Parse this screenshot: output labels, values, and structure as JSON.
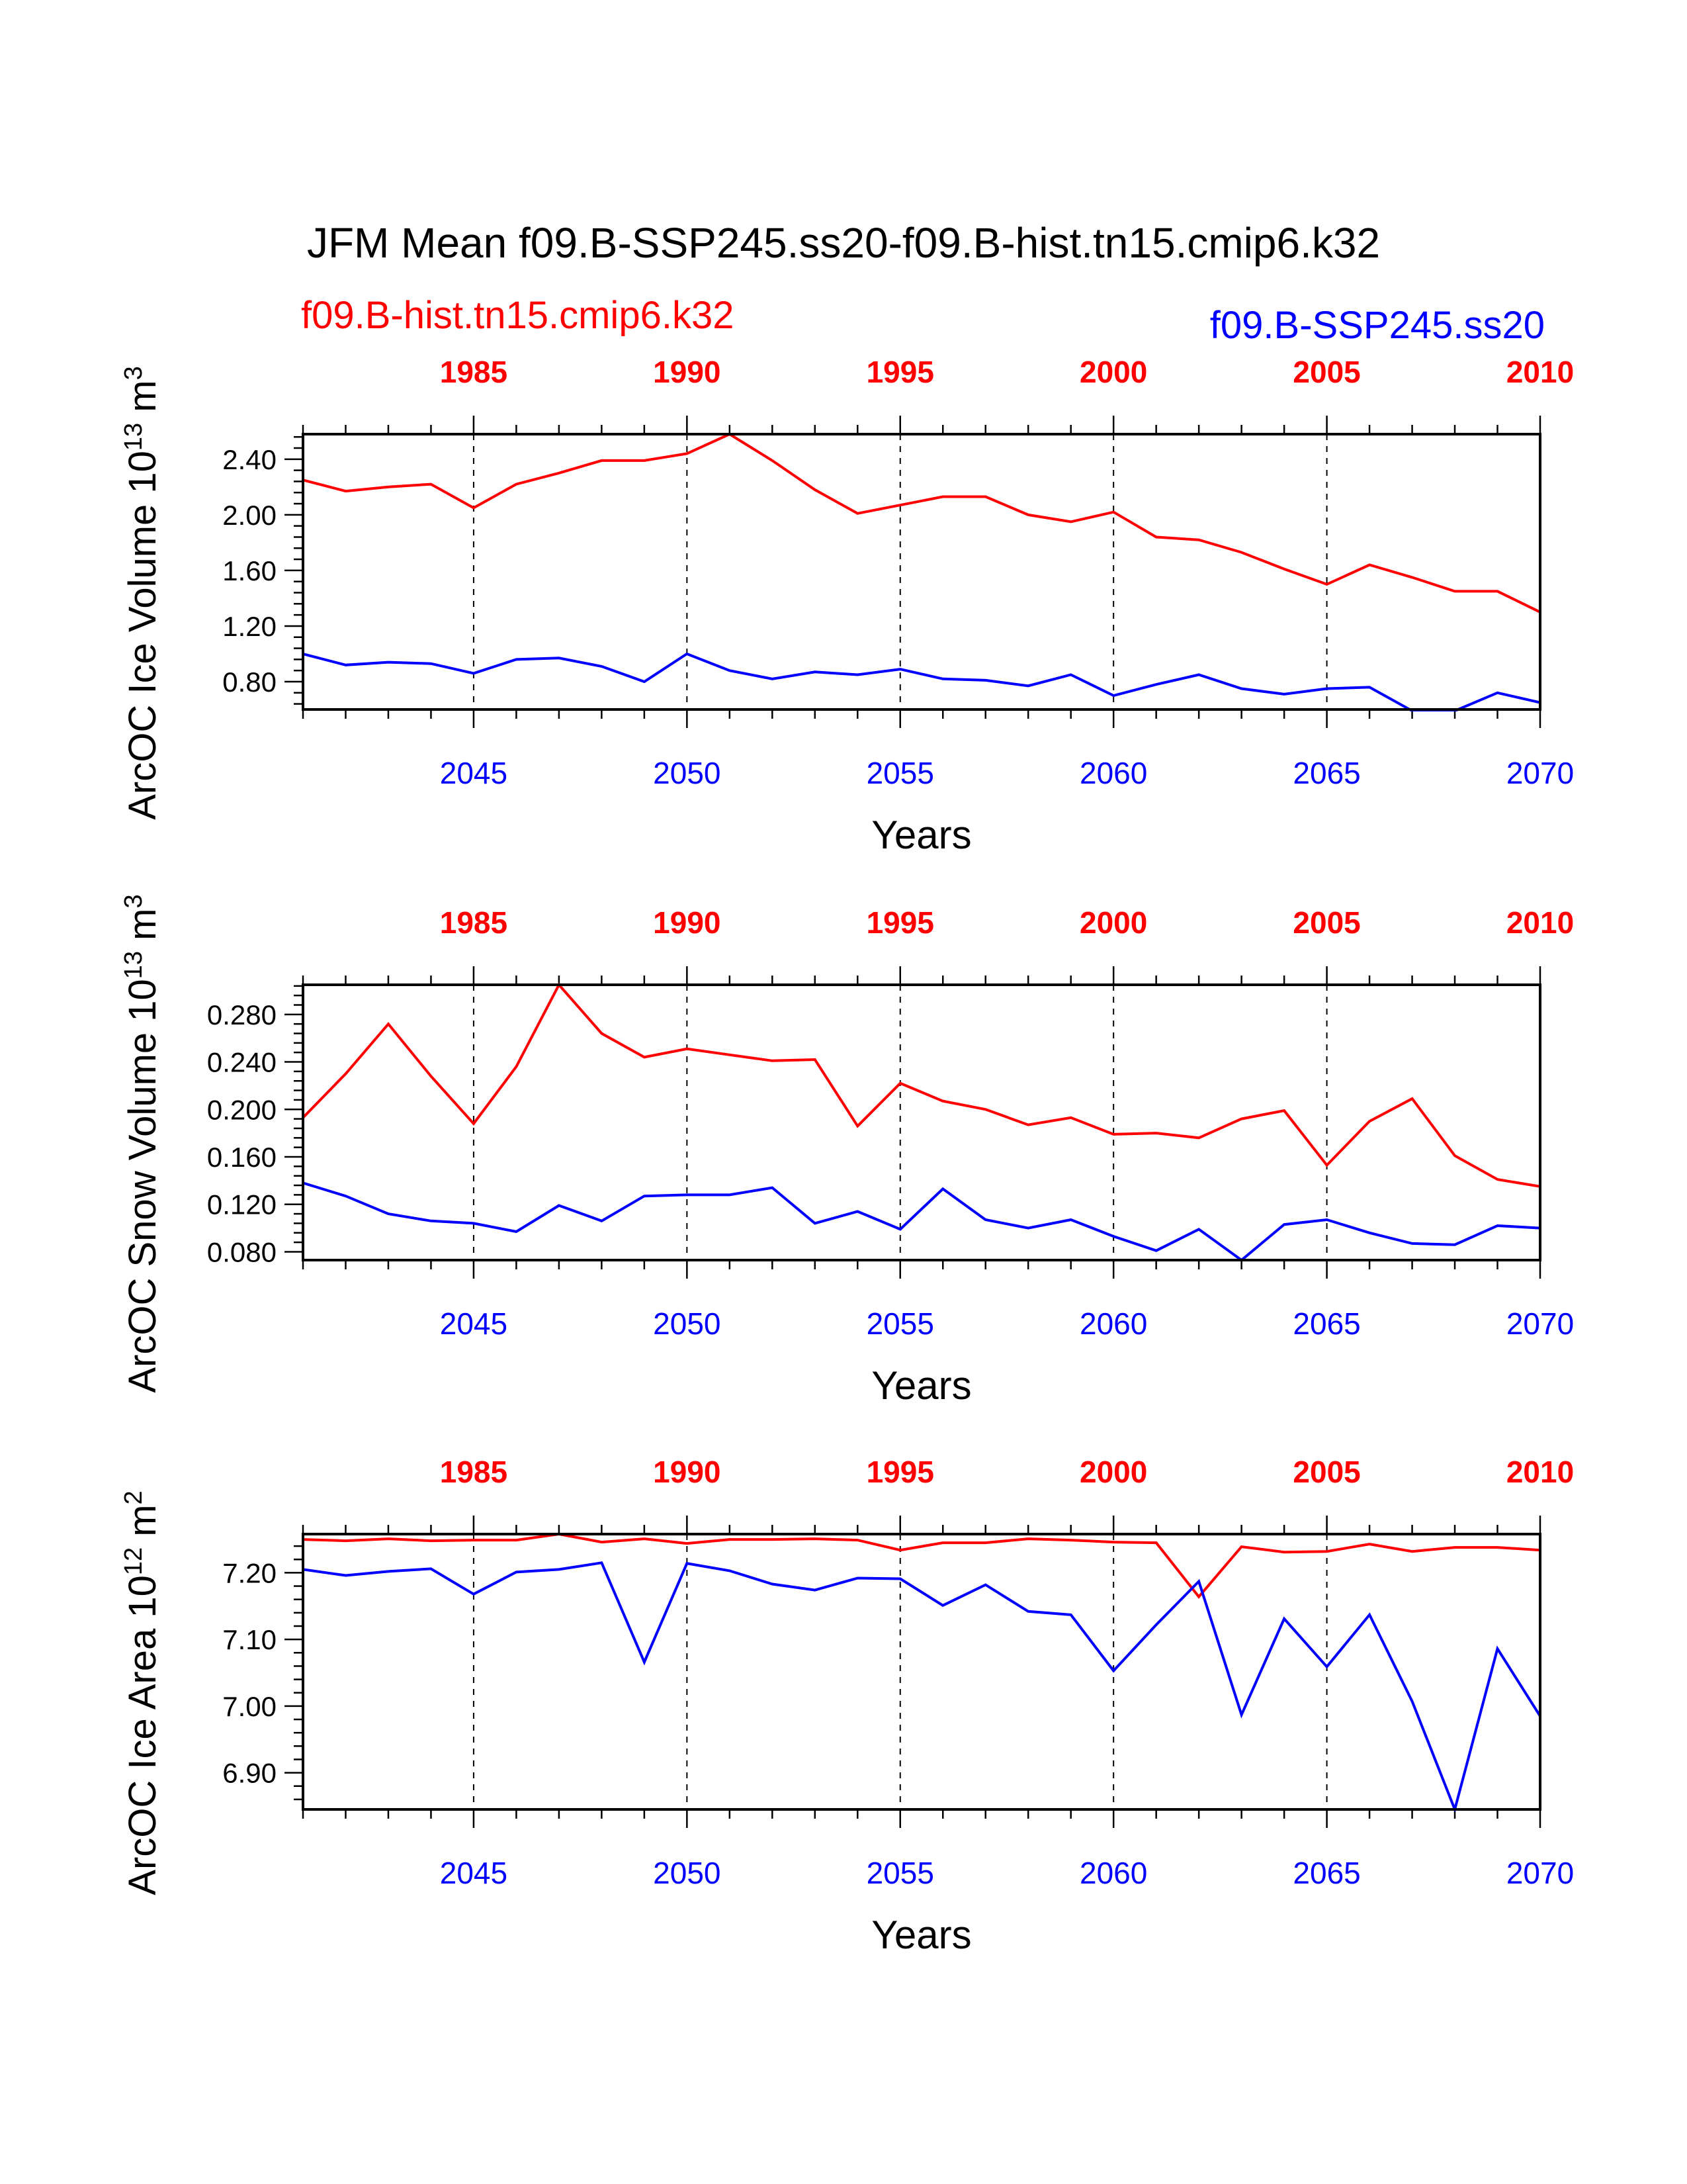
{
  "title": "JFM Mean f09.B-SSP245.ss20-f09.B-hist.tn15.cmip6.k32",
  "legend": {
    "hist_label": "f09.B-hist.tn15.cmip6.k32",
    "ssp_label": "f09.B-SSP245.ss20",
    "hist_color": "#ff0000",
    "ssp_color": "#0000ff"
  },
  "chart_data": [
    {
      "type": "line",
      "ylabel": "ArcOC Ice Volume 10^13 m^3",
      "xlabel": "Years",
      "ylim": [
        0.6,
        2.58
      ],
      "yticks": [
        0.8,
        1.2,
        1.6,
        2.0,
        2.4
      ],
      "ytick_labels": [
        "0.80",
        "1.20",
        "1.60",
        "2.00",
        "2.40"
      ],
      "xlim_bottom": [
        2041,
        2070
      ],
      "xticks_bottom": [
        "2045",
        "2050",
        "2055",
        "2060",
        "2065",
        "2070"
      ],
      "xticks_top": [
        "1985",
        "1990",
        "1995",
        "2000",
        "2005",
        "2010"
      ],
      "x": [
        2041,
        2042,
        2043,
        2044,
        2045,
        2046,
        2047,
        2048,
        2049,
        2050,
        2051,
        2052,
        2053,
        2054,
        2055,
        2056,
        2057,
        2058,
        2059,
        2060,
        2061,
        2062,
        2063,
        2064,
        2065,
        2066,
        2067,
        2068,
        2069,
        2070
      ],
      "series": [
        {
          "name": "f09.B-hist.tn15.cmip6.k32",
          "color": "#ff0000",
          "values": [
            2.25,
            2.17,
            2.2,
            2.22,
            2.05,
            2.22,
            2.3,
            2.39,
            2.39,
            2.44,
            2.58,
            2.39,
            2.18,
            2.01,
            2.07,
            2.13,
            2.13,
            2.0,
            1.95,
            2.02,
            1.84,
            1.82,
            1.73,
            1.61,
            1.5,
            1.64,
            1.55,
            1.45,
            1.45,
            1.3
          ]
        },
        {
          "name": "f09.B-SSP245.ss20",
          "color": "#0000ff",
          "values": [
            1.0,
            0.92,
            0.94,
            0.93,
            0.86,
            0.96,
            0.97,
            0.91,
            0.8,
            1.0,
            0.88,
            0.82,
            0.87,
            0.85,
            0.89,
            0.82,
            0.81,
            0.77,
            0.85,
            0.7,
            0.78,
            0.85,
            0.75,
            0.71,
            0.75,
            0.76,
            0.59,
            0.59,
            0.72,
            0.65
          ]
        }
      ]
    },
    {
      "type": "line",
      "ylabel": "ArcOC Snow Volume 10^13 m^3",
      "xlabel": "Years",
      "ylim": [
        0.073,
        0.305
      ],
      "yticks": [
        0.08,
        0.12,
        0.16,
        0.2,
        0.24,
        0.28
      ],
      "ytick_labels": [
        "0.080",
        "0.120",
        "0.160",
        "0.200",
        "0.240",
        "0.280"
      ],
      "xlim_bottom": [
        2041,
        2070
      ],
      "xticks_bottom": [
        "2045",
        "2050",
        "2055",
        "2060",
        "2065",
        "2070"
      ],
      "xticks_top": [
        "1985",
        "1990",
        "1995",
        "2000",
        "2005",
        "2010"
      ],
      "x": [
        2041,
        2042,
        2043,
        2044,
        2045,
        2046,
        2047,
        2048,
        2049,
        2050,
        2051,
        2052,
        2053,
        2054,
        2055,
        2056,
        2057,
        2058,
        2059,
        2060,
        2061,
        2062,
        2063,
        2064,
        2065,
        2066,
        2067,
        2068,
        2069,
        2070
      ],
      "series": [
        {
          "name": "f09.B-hist.tn15.cmip6.k32",
          "color": "#ff0000",
          "values": [
            0.193,
            0.23,
            0.272,
            0.228,
            0.188,
            0.236,
            0.305,
            0.264,
            0.244,
            0.251,
            0.246,
            0.241,
            0.242,
            0.186,
            0.222,
            0.207,
            0.2,
            0.187,
            0.193,
            0.179,
            0.18,
            0.176,
            0.192,
            0.199,
            0.153,
            0.19,
            0.209,
            0.161,
            0.141,
            0.135
          ]
        },
        {
          "name": "f09.B-SSP245.ss20",
          "color": "#0000ff",
          "values": [
            0.138,
            0.127,
            0.112,
            0.106,
            0.104,
            0.097,
            0.119,
            0.106,
            0.127,
            0.128,
            0.128,
            0.134,
            0.104,
            0.114,
            0.099,
            0.133,
            0.107,
            0.1,
            0.107,
            0.093,
            0.081,
            0.099,
            0.073,
            0.103,
            0.107,
            0.096,
            0.087,
            0.086,
            0.102,
            0.1
          ]
        }
      ]
    },
    {
      "type": "line",
      "ylabel": "ArcOC Ice Area 10^12 m^2",
      "xlabel": "Years",
      "ylim": [
        6.845,
        7.258
      ],
      "yticks": [
        6.9,
        7.0,
        7.1,
        7.2
      ],
      "ytick_labels": [
        "6.90",
        "7.00",
        "7.10",
        "7.20"
      ],
      "xlim_bottom": [
        2041,
        2070
      ],
      "xticks_bottom": [
        "2045",
        "2050",
        "2055",
        "2060",
        "2065",
        "2070"
      ],
      "xticks_top": [
        "1985",
        "1990",
        "1995",
        "2000",
        "2005",
        "2010"
      ],
      "x": [
        2041,
        2042,
        2043,
        2044,
        2045,
        2046,
        2047,
        2048,
        2049,
        2050,
        2051,
        2052,
        2053,
        2054,
        2055,
        2056,
        2057,
        2058,
        2059,
        2060,
        2061,
        2062,
        2063,
        2064,
        2065,
        2066,
        2067,
        2068,
        2069,
        2070
      ],
      "series": [
        {
          "name": "f09.B-hist.tn15.cmip6.k32",
          "color": "#ff0000",
          "values": [
            7.25,
            7.248,
            7.251,
            7.248,
            7.249,
            7.249,
            7.258,
            7.246,
            7.251,
            7.244,
            7.25,
            7.25,
            7.251,
            7.249,
            7.234,
            7.245,
            7.245,
            7.251,
            7.249,
            7.246,
            7.245,
            7.164,
            7.239,
            7.231,
            7.232,
            7.243,
            7.232,
            7.238,
            7.238,
            7.234
          ]
        },
        {
          "name": "f09.B-SSP245.ss20",
          "color": "#0000ff",
          "values": [
            7.205,
            7.196,
            7.202,
            7.206,
            7.168,
            7.201,
            7.205,
            7.215,
            7.066,
            7.214,
            7.203,
            7.183,
            7.174,
            7.192,
            7.191,
            7.151,
            7.182,
            7.142,
            7.137,
            7.053,
            7.122,
            7.187,
            6.987,
            7.131,
            7.059,
            7.137,
            7.007,
            6.845,
            7.086,
            6.985
          ]
        }
      ]
    }
  ]
}
